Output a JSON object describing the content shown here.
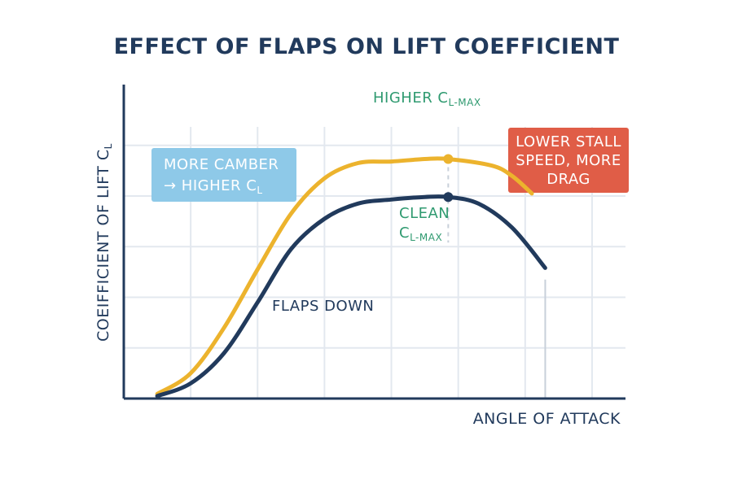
{
  "chart_data": {
    "type": "line",
    "title": "EFFECT OF FLAPS ON LIFT COEFFICIENT",
    "xlabel": "ANGLE OF ATTACK",
    "ylabel_main": "COEIFFICIENT OF LIFT C",
    "ylabel_sub": "L",
    "grid": true,
    "series": [
      {
        "name": "FLAPS DOWN",
        "color": "#ecb32d",
        "x": [
          0.5,
          1.0,
          1.5,
          2.0,
          2.5,
          3.0,
          3.5,
          4.0,
          4.5,
          4.85,
          5.5,
          5.8,
          6.1
        ],
        "y": [
          0.09,
          0.5,
          1.4,
          2.55,
          3.65,
          4.35,
          4.65,
          4.68,
          4.73,
          4.73,
          4.6,
          4.4,
          4.05
        ]
      },
      {
        "name": "CLEAN",
        "color": "#213a5c",
        "x": [
          0.5,
          1.0,
          1.5,
          2.0,
          2.5,
          3.0,
          3.5,
          4.0,
          4.5,
          4.85,
          5.3,
          5.8,
          6.3
        ],
        "y": [
          0.05,
          0.3,
          0.9,
          1.9,
          2.95,
          3.55,
          3.85,
          3.93,
          3.98,
          3.98,
          3.85,
          3.38,
          2.58
        ]
      }
    ],
    "peaks": [
      {
        "series": "FLAPS DOWN",
        "x": 4.85,
        "y": 4.73
      },
      {
        "series": "CLEAN",
        "x": 4.85,
        "y": 3.98
      }
    ],
    "stall_marker_x": 6.3,
    "xlim": [
      0,
      7.5
    ],
    "ylim": [
      0,
      6.2
    ],
    "xticks": [
      1,
      2,
      3,
      4,
      5,
      6,
      7
    ],
    "yticks": [
      1,
      2,
      3,
      4,
      5
    ],
    "annotations": {
      "higher": {
        "main": "HIGHER C",
        "sub": "L-MAX"
      },
      "clean_line1": "CLEAN",
      "clean_line2": {
        "main": "C",
        "sub": "L-MAX"
      },
      "camber_line1": "MORE CAMBER",
      "camber_line2": {
        "main": "→ HIGHER C",
        "sub": "L"
      },
      "flaps_down": "FLAPS DOWN",
      "stall_lines": [
        "LOWER STALL",
        "SPEED, MORE",
        "DRAG"
      ]
    },
    "colors": {
      "axis": "#213a5c",
      "grid": "#e3e8ef",
      "guide": "#c8d0da",
      "green": "#2f9a70",
      "camber_box": "#8ec9e8",
      "stall_box": "#e05d47"
    }
  }
}
